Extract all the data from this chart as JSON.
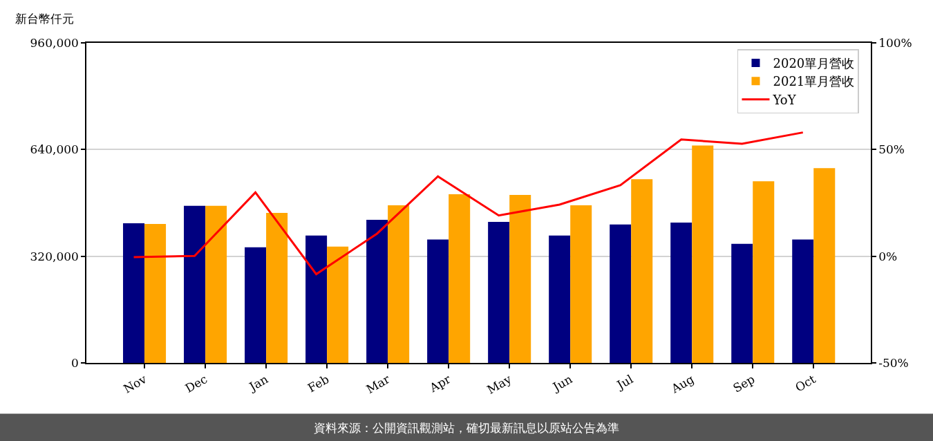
{
  "chart_data": {
    "type": "bar",
    "ylabel": "新台幣仟元",
    "annotations": [
      "資料來源：公開資訊觀測站，確切最新訊息以原站公告為準"
    ],
    "categories": [
      "Nov",
      "Dec",
      "Jan",
      "Feb",
      "Mar",
      "Apr",
      "May",
      "Jun",
      "Jul",
      "Aug",
      "Sep",
      "Oct"
    ],
    "series": [
      {
        "name": "2020單月營收",
        "color": "#000080",
        "values": [
          419000,
          471000,
          347000,
          382000,
          429000,
          370000,
          423000,
          382000,
          415000,
          421000,
          357000,
          370000
        ]
      },
      {
        "name": "2021單月營收",
        "color": "#ffa500",
        "values": [
          417000,
          471000,
          450000,
          349000,
          473000,
          506000,
          504000,
          473000,
          551000,
          652000,
          545000,
          584000
        ]
      },
      {
        "name": "YoY",
        "type": "line",
        "axis": "y2",
        "color": "#ff0000",
        "values": [
          -0.4,
          0.1,
          29.9,
          -8.4,
          10.6,
          37.4,
          19.1,
          24.2,
          33.3,
          54.7,
          52.7,
          58.0
        ]
      }
    ],
    "ylim": [
      0,
      960000
    ],
    "yticks": [
      0,
      {
        "value": 320000,
        "label": "320,000"
      },
      {
        "value": 640000,
        "label": "640,000"
      },
      {
        "value": 960000,
        "label": "960,000"
      }
    ],
    "y2lim": [
      -50,
      100
    ],
    "y2ticks": [
      {
        "value": -50,
        "label": "-50%"
      },
      {
        "value": 0,
        "label": "0%"
      },
      {
        "value": 50,
        "label": "50%"
      },
      {
        "value": 100,
        "label": "100%"
      }
    ],
    "grid": "y",
    "legend": "top right"
  }
}
